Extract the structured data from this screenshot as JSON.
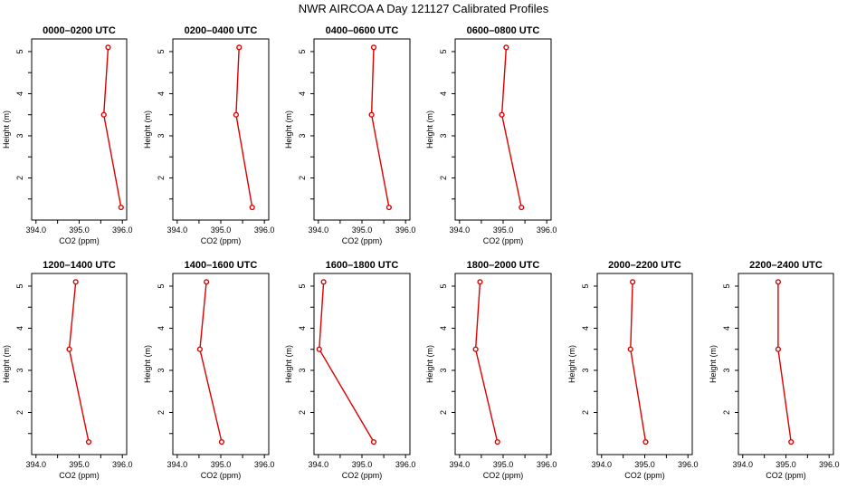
{
  "title": "NWR AIRCOA A  Day 121127  Calibrated Profiles",
  "colors": {
    "line": "#dd0000",
    "axis": "#000000",
    "background": "#ffffff"
  },
  "chart_data": [
    {
      "type": "line",
      "title": "0000–0200 UTC",
      "xlabel": "CO2 (ppm)",
      "ylabel": "Height (m)",
      "xlim": [
        393.9,
        396.1
      ],
      "ylim": [
        1.0,
        5.3
      ],
      "xticks": [
        "394.0",
        "395.0",
        "396.0"
      ],
      "yticks": [
        "2",
        "3",
        "4",
        "5"
      ],
      "x": [
        395.67,
        395.57,
        395.97
      ],
      "y": [
        5.1,
        3.5,
        1.3
      ]
    },
    {
      "type": "line",
      "title": "0200–0400 UTC",
      "xlabel": "CO2 (ppm)",
      "ylabel": "Height (m)",
      "xlim": [
        393.9,
        396.1
      ],
      "ylim": [
        1.0,
        5.3
      ],
      "xticks": [
        "394.0",
        "395.0",
        "396.0"
      ],
      "yticks": [
        "2",
        "3",
        "4",
        "5"
      ],
      "x": [
        395.42,
        395.35,
        395.72
      ],
      "y": [
        5.1,
        3.5,
        1.3
      ]
    },
    {
      "type": "line",
      "title": "0400–0600 UTC",
      "xlabel": "CO2 (ppm)",
      "ylabel": "Height (m)",
      "xlim": [
        393.9,
        396.1
      ],
      "ylim": [
        1.0,
        5.3
      ],
      "xticks": [
        "394.0",
        "395.0",
        "396.0"
      ],
      "yticks": [
        "2",
        "3",
        "4",
        "5"
      ],
      "x": [
        395.27,
        395.22,
        395.62
      ],
      "y": [
        5.1,
        3.5,
        1.3
      ]
    },
    {
      "type": "line",
      "title": "0600–0800 UTC",
      "xlabel": "CO2 (ppm)",
      "ylabel": "Height (m)",
      "xlim": [
        393.9,
        396.1
      ],
      "ylim": [
        1.0,
        5.3
      ],
      "xticks": [
        "394.0",
        "395.0",
        "396.0"
      ],
      "yticks": [
        "2",
        "3",
        "4",
        "5"
      ],
      "x": [
        395.07,
        394.97,
        395.42
      ],
      "y": [
        5.1,
        3.5,
        1.3
      ]
    },
    {
      "type": "line",
      "title": "1200–1400 UTC",
      "xlabel": "CO2 (ppm)",
      "ylabel": "Height (m)",
      "xlim": [
        393.9,
        396.1
      ],
      "ylim": [
        1.0,
        5.3
      ],
      "xticks": [
        "394.0",
        "395.0",
        "396.0"
      ],
      "yticks": [
        "2",
        "3",
        "4",
        "5"
      ],
      "x": [
        394.92,
        394.77,
        395.22
      ],
      "y": [
        5.1,
        3.5,
        1.3
      ]
    },
    {
      "type": "line",
      "title": "1400–1600 UTC",
      "xlabel": "CO2 (ppm)",
      "ylabel": "Height (m)",
      "xlim": [
        393.9,
        396.1
      ],
      "ylim": [
        1.0,
        5.3
      ],
      "xticks": [
        "394.0",
        "395.0",
        "396.0"
      ],
      "yticks": [
        "2",
        "3",
        "4",
        "5"
      ],
      "x": [
        394.67,
        394.52,
        395.02
      ],
      "y": [
        5.1,
        3.5,
        1.3
      ]
    },
    {
      "type": "line",
      "title": "1600–1800 UTC",
      "xlabel": "CO2 (ppm)",
      "ylabel": "Height (m)",
      "xlim": [
        393.9,
        396.1
      ],
      "ylim": [
        1.0,
        5.3
      ],
      "xticks": [
        "394.0",
        "395.0",
        "396.0"
      ],
      "yticks": [
        "2",
        "3",
        "4",
        "5"
      ],
      "x": [
        394.12,
        394.02,
        395.27
      ],
      "y": [
        5.1,
        3.5,
        1.3
      ]
    },
    {
      "type": "line",
      "title": "1800–2000 UTC",
      "xlabel": "CO2 (ppm)",
      "ylabel": "Height (m)",
      "xlim": [
        393.9,
        396.1
      ],
      "ylim": [
        1.0,
        5.3
      ],
      "xticks": [
        "394.0",
        "395.0",
        "396.0"
      ],
      "yticks": [
        "2",
        "3",
        "4",
        "5"
      ],
      "x": [
        394.47,
        394.37,
        394.87
      ],
      "y": [
        5.1,
        3.5,
        1.3
      ]
    },
    {
      "type": "line",
      "title": "2000–2200 UTC",
      "xlabel": "CO2 (ppm)",
      "ylabel": "Height (m)",
      "xlim": [
        393.9,
        396.1
      ],
      "ylim": [
        1.0,
        5.3
      ],
      "xticks": [
        "394.0",
        "395.0",
        "396.0"
      ],
      "yticks": [
        "2",
        "3",
        "4",
        "5"
      ],
      "x": [
        394.72,
        394.67,
        395.02
      ],
      "y": [
        5.1,
        3.5,
        1.3
      ]
    },
    {
      "type": "line",
      "title": "2200–2400 UTC",
      "xlabel": "CO2 (ppm)",
      "ylabel": "Height (m)",
      "xlim": [
        393.9,
        396.1
      ],
      "ylim": [
        1.0,
        5.3
      ],
      "xticks": [
        "394.0",
        "395.0",
        "396.0"
      ],
      "yticks": [
        "2",
        "3",
        "4",
        "5"
      ],
      "x": [
        394.82,
        394.82,
        395.12
      ],
      "y": [
        5.1,
        3.5,
        1.3
      ]
    }
  ]
}
